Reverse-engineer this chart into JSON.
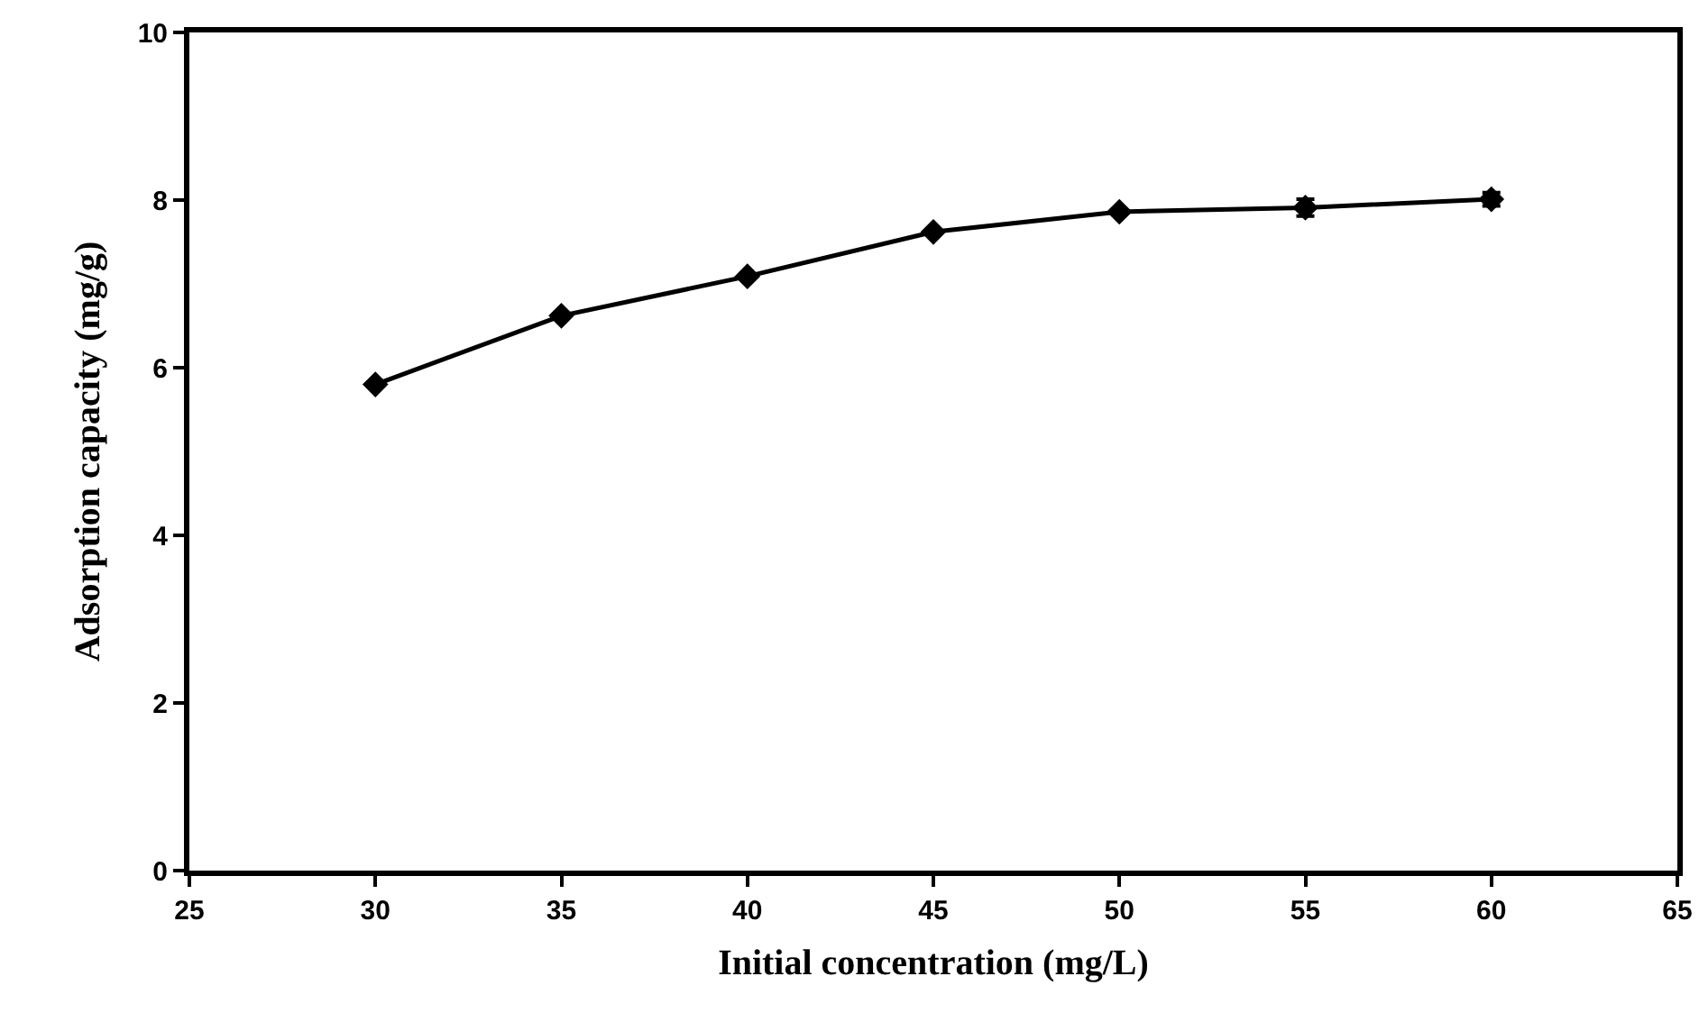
{
  "chart_data": {
    "type": "line",
    "xlabel": "Initial concentration (mg/L)",
    "ylabel": "Adsorption capacity (mg/g)",
    "x": [
      30,
      35,
      40,
      45,
      50,
      55,
      60
    ],
    "series": [
      {
        "color": "#000000",
        "values": [
          5.8,
          6.62,
          7.09,
          7.62,
          7.86,
          7.91,
          8.01
        ],
        "errors": [
          null,
          null,
          null,
          null,
          null,
          0.1,
          0.08
        ]
      }
    ],
    "xlim": [
      25,
      65
    ],
    "xticks": [
      25,
      30,
      35,
      40,
      45,
      50,
      55,
      60,
      65
    ],
    "ylim": [
      0,
      10
    ],
    "yticks": [
      0,
      2,
      4,
      6,
      8,
      10
    ],
    "grid": false,
    "marker": "diamond",
    "line_style": "solid"
  }
}
